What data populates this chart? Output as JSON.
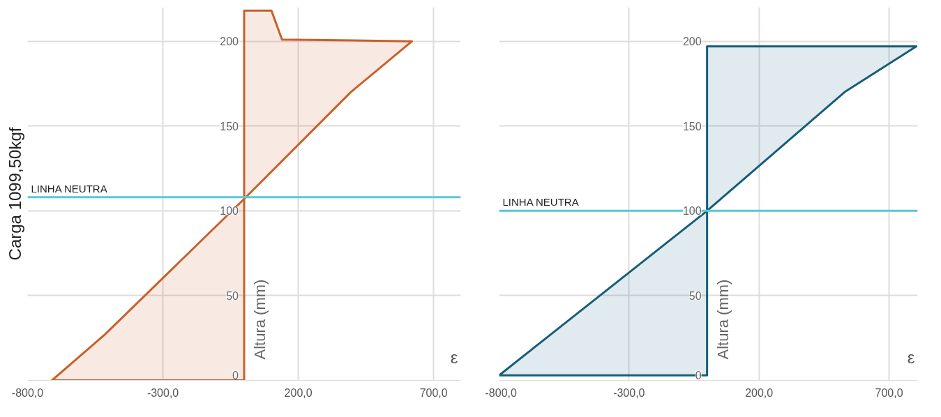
{
  "chart_data": [
    {
      "type": "area",
      "title": "Carga 1099,50kgf",
      "xlabel": "ε",
      "ylabel": "Altura (mm)",
      "xlim": [
        -800,
        800
      ],
      "ylim": [
        0,
        220
      ],
      "xticks": [
        {
          "value": -800,
          "label": "-800,0"
        },
        {
          "value": -300,
          "label": "-300,0"
        },
        {
          "value": 200,
          "label": "200,0"
        },
        {
          "value": 700,
          "label": "700,0"
        }
      ],
      "yticks": [
        0,
        50,
        100,
        150,
        200
      ],
      "grid": true,
      "series": [
        {
          "color": "#c8602a",
          "x": [
            0,
            -710,
            -515,
            0,
            394,
            620,
            140,
            101,
            0,
            0
          ],
          "values": [
            0,
            0,
            27,
            107,
            170,
            200,
            201,
            218,
            218,
            0
          ]
        }
      ],
      "ref_lines": [
        {
          "axis": "y",
          "value": 108,
          "label": "LINHA NEUTRA",
          "color": "#5bc8d8"
        }
      ]
    },
    {
      "type": "area",
      "xlabel": "ε",
      "ylabel": "Altura (mm)",
      "xlim": [
        -800,
        810
      ],
      "ylim": [
        0,
        220
      ],
      "xticks": [
        {
          "value": -800,
          "label": "-800,0"
        },
        {
          "value": -300,
          "label": "-300,0"
        },
        {
          "value": 200,
          "label": "200,0"
        },
        {
          "value": 700,
          "label": "700,0"
        }
      ],
      "yticks": [
        0,
        50,
        100,
        150,
        200
      ],
      "grid": true,
      "series": [
        {
          "color": "#155e7a",
          "x": [
            -800,
            0,
            529,
            805,
            0,
            0,
            -800
          ],
          "values": [
            3,
            100,
            170,
            197,
            197,
            3,
            3
          ]
        }
      ],
      "ref_lines": [
        {
          "axis": "y",
          "value": 100,
          "label": "LINHA NEUTRA",
          "color": "#5bc8d8"
        }
      ]
    }
  ]
}
